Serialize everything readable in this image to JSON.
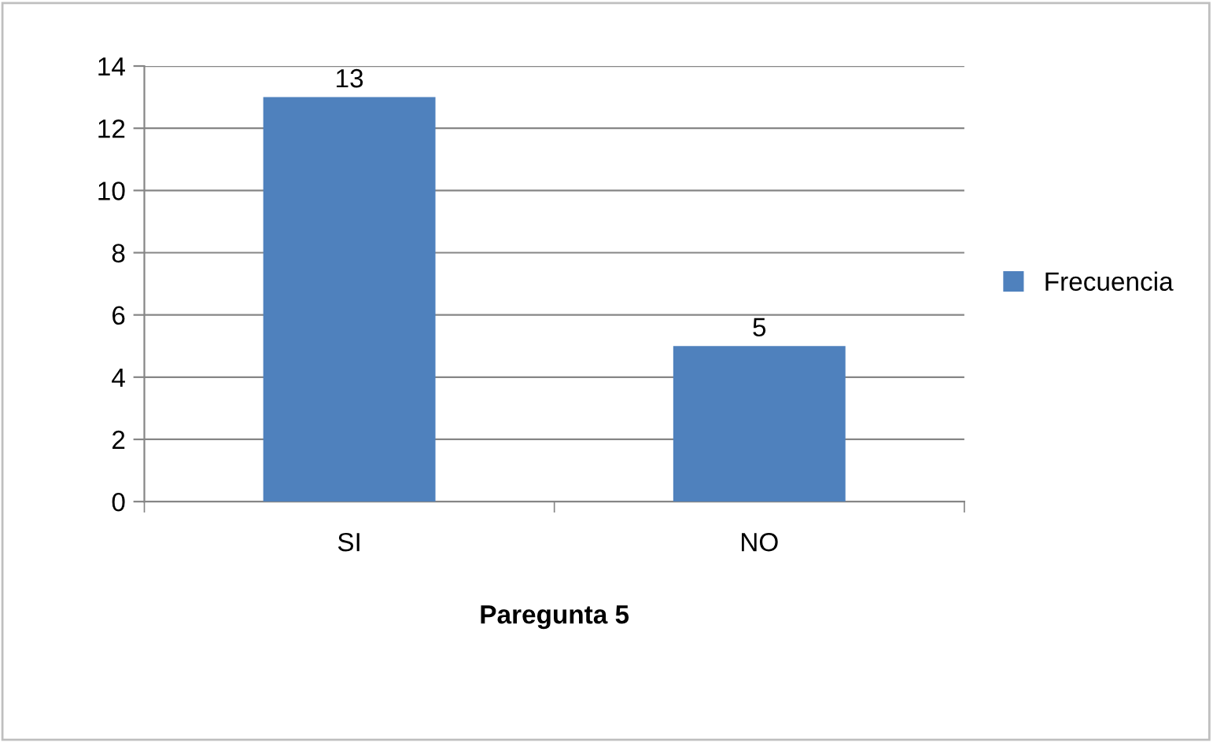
{
  "chart_data": {
    "type": "bar",
    "xlabel": "Paregunta 5",
    "categories": [
      "SI",
      "NO"
    ],
    "series": [
      {
        "name": "Frecuencia",
        "color": "#4f81bd",
        "values": [
          13,
          5
        ]
      }
    ],
    "ylim": [
      0,
      14
    ],
    "yticks": [
      0,
      2,
      4,
      6,
      8,
      10,
      12,
      14
    ],
    "grid": "y",
    "legend": "right",
    "data_labels": true
  }
}
